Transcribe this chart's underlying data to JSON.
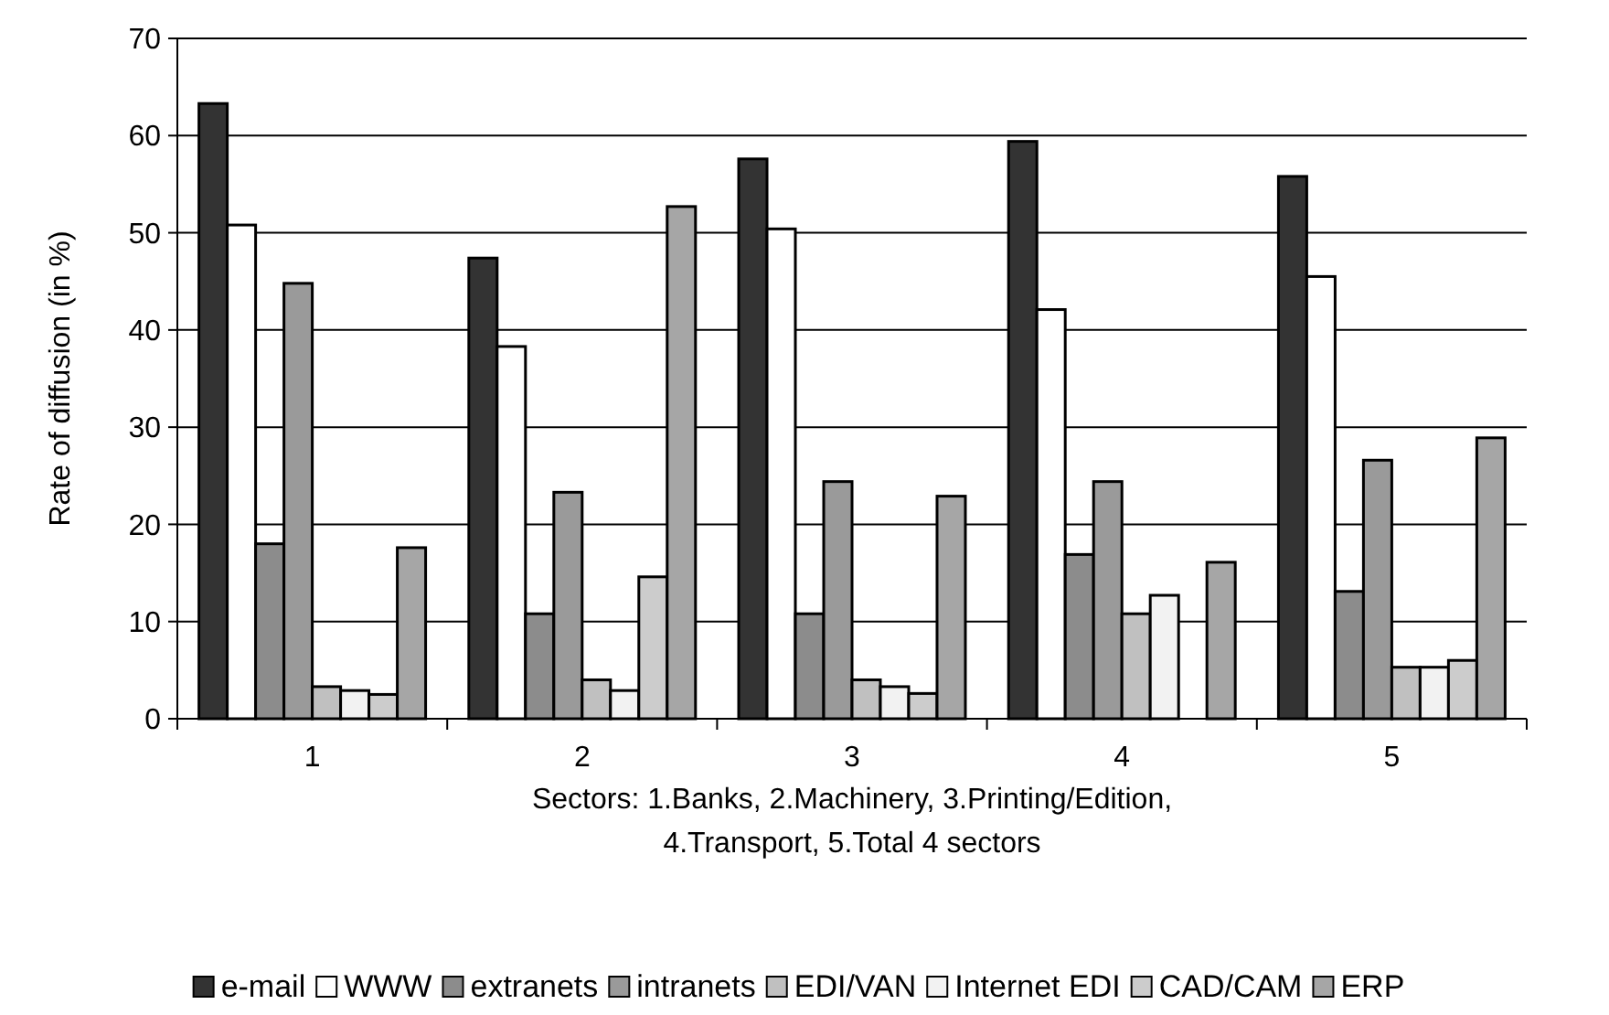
{
  "chart_data": {
    "type": "bar",
    "xlabel": "Sectors: 1.Banks, 2.Machinery, 3.Printing/Edition,\n4.Transport, 5.Total 4 sectors",
    "ylabel": "Rate of diffusion (in %)",
    "categories": [
      "1",
      "2",
      "3",
      "4",
      "5"
    ],
    "series": [
      {
        "name": "e-mail",
        "color": "#333333",
        "values": [
          63.3,
          47.4,
          57.6,
          59.4,
          55.8
        ]
      },
      {
        "name": "WWW",
        "color": "#ffffff",
        "values": [
          50.8,
          38.3,
          50.4,
          42.1,
          45.5
        ]
      },
      {
        "name": "extranets",
        "color": "#8c8c8c",
        "values": [
          18,
          10.8,
          10.8,
          16.9,
          13.1
        ]
      },
      {
        "name": "intranets",
        "color": "#9a9a9a",
        "values": [
          44.8,
          23.3,
          24.4,
          24.4,
          26.6
        ]
      },
      {
        "name": "EDI/VAN",
        "color": "#c0c0c0",
        "values": [
          3.3,
          4.0,
          4.0,
          10.8,
          5.3
        ]
      },
      {
        "name": "Internet EDI",
        "color": "#f2f2f2",
        "values": [
          2.9,
          2.9,
          3.3,
          12.7,
          5.3
        ]
      },
      {
        "name": "CAD/CAM",
        "color": "#cccccc",
        "values": [
          2.5,
          14.6,
          2.6,
          null,
          6.0
        ]
      },
      {
        "name": "ERP",
        "color": "#a6a6a6",
        "values": [
          17.6,
          52.7,
          22.9,
          16.1,
          28.9
        ]
      }
    ],
    "ylim": [
      0,
      70
    ],
    "yticks": [
      0,
      10,
      20,
      30,
      40,
      50,
      60,
      70
    ],
    "grid": "y",
    "legend": "bottom"
  }
}
